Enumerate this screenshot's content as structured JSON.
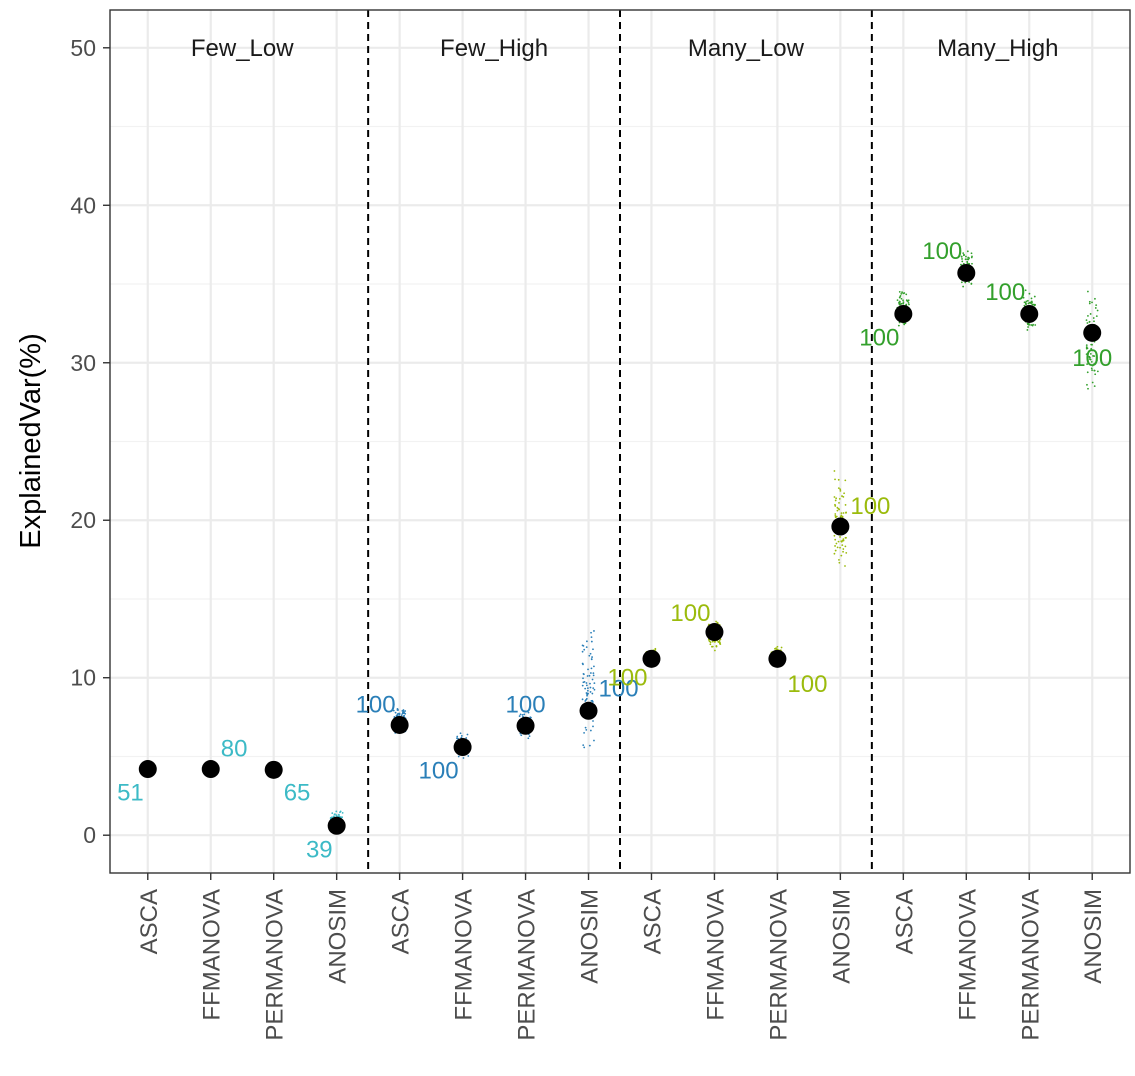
{
  "chart_data": {
    "type": "scatter",
    "ylabel": "ExplainedVar(%)",
    "xlabel": "",
    "ylim": [
      -2.4,
      52.4
    ],
    "y_ticks": [
      0,
      10,
      20,
      30,
      40,
      50
    ],
    "grid": true,
    "legend": "none",
    "groups": [
      {
        "name": "Few_Low",
        "color": "#3cbac6",
        "points": [
          {
            "method": "ASCA",
            "y": 4.2,
            "count": "51",
            "label_y": 2.7,
            "label_side": "left",
            "jitter": [
              4.2,
              4.2
            ]
          },
          {
            "method": "FFMANOVA",
            "y": 4.2,
            "count": "80",
            "label_y": 5.5,
            "label_side": "right",
            "jitter": [
              4.2,
              4.2
            ]
          },
          {
            "method": "PERMANOVA",
            "y": 4.15,
            "count": "65",
            "label_y": 2.7,
            "label_side": "right",
            "jitter": [
              4.15,
              4.15
            ]
          },
          {
            "method": "ANOSIM",
            "y": 0.6,
            "count": "39",
            "label_y": -0.9,
            "label_side": "left",
            "jitter": [
              0.1,
              1.8
            ]
          }
        ]
      },
      {
        "name": "Few_High",
        "color": "#2a7fb8",
        "points": [
          {
            "method": "ASCA",
            "y": 7.0,
            "count": "100",
            "label_y": 8.3,
            "label_side": "left",
            "jitter": [
              6.2,
              8.4
            ]
          },
          {
            "method": "FFMANOVA",
            "y": 5.6,
            "count": "100",
            "label_y": 4.1,
            "label_side": "left",
            "jitter": [
              4.8,
              6.7
            ]
          },
          {
            "method": "PERMANOVA",
            "y": 6.95,
            "count": "100",
            "label_y": 8.3,
            "label_side": "center",
            "jitter": [
              6.0,
              8.0
            ]
          },
          {
            "method": "ANOSIM",
            "y": 7.9,
            "count": "100",
            "label_y": 9.3,
            "label_side": "right",
            "jitter": [
              4.0,
              14.6
            ]
          }
        ]
      },
      {
        "name": "Many_Low",
        "color": "#9bbb0c",
        "points": [
          {
            "method": "ASCA",
            "y": 11.2,
            "count": "100",
            "label_y": 10.0,
            "label_side": "left",
            "jitter": [
              10.5,
              12.1
            ]
          },
          {
            "method": "FFMANOVA",
            "y": 12.9,
            "count": "100",
            "label_y": 14.1,
            "label_side": "left",
            "jitter": [
              11.5,
              13.9
            ]
          },
          {
            "method": "PERMANOVA",
            "y": 11.2,
            "count": "100",
            "label_y": 9.6,
            "label_side": "right",
            "jitter": [
              10.2,
              12.2
            ]
          },
          {
            "method": "ANOSIM",
            "y": 19.6,
            "count": "100",
            "label_y": 20.9,
            "label_side": "right",
            "jitter": [
              15.5,
              23.8
            ]
          }
        ]
      },
      {
        "name": "Many_High",
        "color": "#33a02c",
        "points": [
          {
            "method": "ASCA",
            "y": 33.1,
            "count": "100",
            "label_y": 31.6,
            "label_side": "left",
            "jitter": [
              31.8,
              35.0
            ]
          },
          {
            "method": "FFMANOVA",
            "y": 35.7,
            "count": "100",
            "label_y": 37.1,
            "label_side": "left",
            "jitter": [
              34.4,
              37.6
            ]
          },
          {
            "method": "PERMANOVA",
            "y": 33.1,
            "count": "100",
            "label_y": 34.5,
            "label_side": "left",
            "jitter": [
              31.8,
              34.9
            ]
          },
          {
            "method": "ANOSIM",
            "y": 31.9,
            "count": "100",
            "label_y": 30.3,
            "label_side": "center",
            "jitter": [
              27.3,
              35.2
            ]
          }
        ]
      }
    ]
  }
}
